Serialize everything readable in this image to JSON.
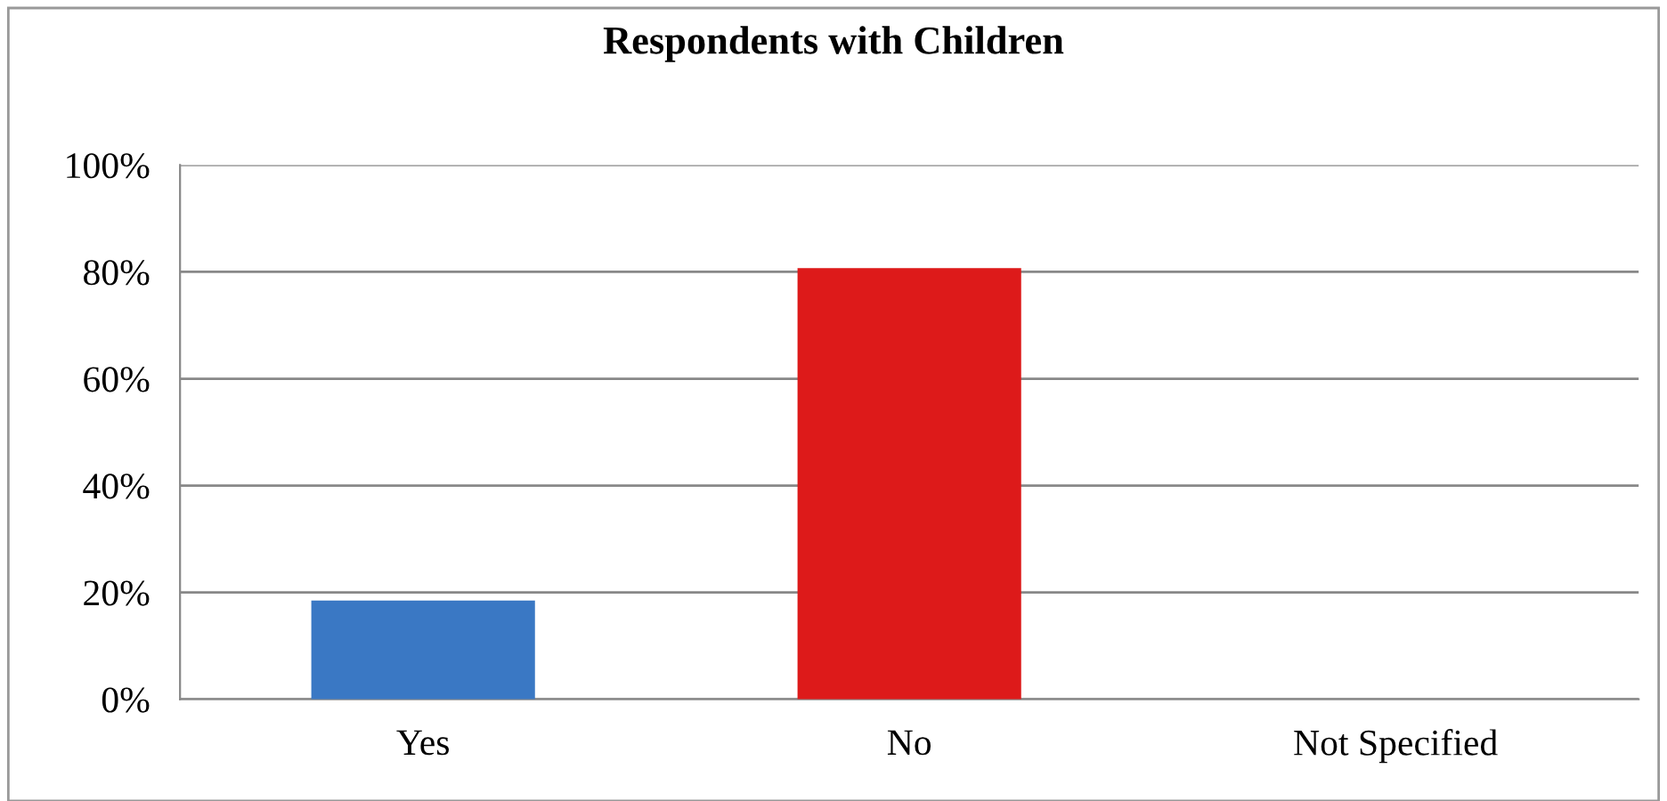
{
  "chart_data": {
    "type": "bar",
    "title": "Respondents with Children",
    "categories": [
      "Yes",
      "No",
      "Not Specified"
    ],
    "values": [
      18.5,
      80.7,
      0
    ],
    "colors": [
      "#3a78c4",
      "#dd1a1a",
      "#888888"
    ],
    "ylim": [
      0,
      100
    ],
    "yticks": [
      {
        "value": 0,
        "label": "0%"
      },
      {
        "value": 20,
        "label": "20%"
      },
      {
        "value": 40,
        "label": "40%"
      },
      {
        "value": 60,
        "label": "60%"
      },
      {
        "value": 80,
        "label": "80%"
      },
      {
        "value": 100,
        "label": "100%"
      }
    ],
    "grid": "y",
    "legend": false
  }
}
